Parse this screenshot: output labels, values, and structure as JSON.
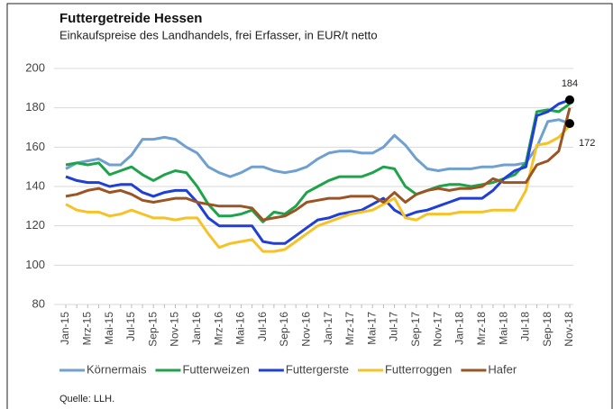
{
  "chart_data": {
    "type": "line",
    "title": "Futtergetreide Hessen",
    "subtitle": "Einkaufspreise des Landhandels, frei Erfasser, in EUR/t netto",
    "source": "Quelle: LLH.",
    "categories": [
      "Jan-15",
      null,
      "Mrz-15",
      null,
      "Mai-15",
      null,
      "Jul-15",
      null,
      "Sep-15",
      null,
      "Nov-15",
      null,
      "Jan-16",
      null,
      "Mrz-16",
      null,
      "Mai-16",
      null,
      "Jul-16",
      null,
      "Sep-16",
      null,
      "Nov-16",
      null,
      "Jan-17",
      null,
      "Mrz-17",
      null,
      "Mai-17",
      null,
      "Jul-17",
      null,
      "Sep-17",
      null,
      "Nov-17",
      null,
      "Jan-18",
      null,
      "Mrz-18",
      null,
      "Mai-18",
      null,
      "Jul-18",
      null,
      "Sep-18",
      null,
      "Nov-18"
    ],
    "ylim": [
      80,
      200
    ],
    "yticks": [
      80,
      100,
      120,
      140,
      160,
      180,
      200
    ],
    "grid": true,
    "legend": "bottom",
    "series": [
      {
        "name": "Körnermais",
        "color": "#6fa0d0",
        "values": [
          149,
          152,
          153,
          154,
          151,
          151,
          156,
          164,
          164,
          165,
          164,
          160,
          157,
          150,
          147,
          145,
          147,
          150,
          150,
          148,
          147,
          148,
          150,
          154,
          157,
          158,
          158,
          157,
          157,
          160,
          166,
          161,
          154,
          149,
          148,
          149,
          149,
          149,
          150,
          150,
          151,
          151,
          152,
          160,
          173,
          174,
          172
        ]
      },
      {
        "name": "Futterweizen",
        "color": "#1fa34a",
        "values": [
          151,
          152,
          151,
          152,
          146,
          148,
          150,
          146,
          143,
          146,
          148,
          147,
          140,
          131,
          125,
          125,
          126,
          128,
          122,
          127,
          126,
          130,
          137,
          140,
          143,
          145,
          145,
          145,
          147,
          150,
          149,
          140,
          136,
          138,
          140,
          141,
          141,
          140,
          141,
          142,
          144,
          146,
          152,
          178,
          179,
          178,
          182
        ]
      },
      {
        "name": "Futtergerste",
        "color": "#1f3fd6",
        "values": [
          145,
          143,
          142,
          142,
          140,
          141,
          141,
          137,
          135,
          137,
          138,
          138,
          132,
          124,
          120,
          120,
          120,
          120,
          112,
          111,
          111,
          115,
          119,
          123,
          124,
          126,
          127,
          128,
          131,
          134,
          128,
          125,
          127,
          128,
          130,
          132,
          134,
          134,
          134,
          138,
          144,
          148,
          150,
          176,
          178,
          182,
          184
        ]
      },
      {
        "name": "Futterroggen",
        "color": "#f5c22a",
        "values": [
          131,
          128,
          127,
          127,
          125,
          126,
          128,
          126,
          124,
          124,
          123,
          124,
          124,
          116,
          109,
          111,
          112,
          113,
          107,
          107,
          108,
          112,
          116,
          120,
          122,
          124,
          126,
          127,
          128,
          131,
          134,
          124,
          123,
          126,
          126,
          126,
          127,
          127,
          127,
          128,
          128,
          128,
          138,
          161,
          162,
          165,
          171
        ]
      },
      {
        "name": "Hafer",
        "color": "#9b5524",
        "values": [
          135,
          136,
          138,
          139,
          137,
          138,
          136,
          133,
          132,
          133,
          134,
          134,
          132,
          131,
          130,
          130,
          130,
          129,
          123,
          124,
          125,
          128,
          132,
          133,
          134,
          134,
          135,
          135,
          135,
          132,
          137,
          132,
          136,
          138,
          139,
          138,
          139,
          139,
          140,
          144,
          142,
          142,
          142,
          151,
          153,
          158,
          180
        ]
      }
    ],
    "annotations": [
      {
        "value": 184
      },
      {
        "value": 172
      }
    ]
  }
}
